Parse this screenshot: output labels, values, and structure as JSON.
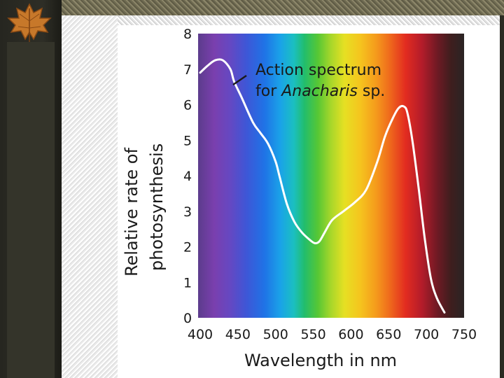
{
  "chart_data": {
    "type": "line",
    "title": "",
    "xlabel": "Wavelength in nm",
    "ylabel_lines": [
      "Relative rate of",
      "photosynthesis"
    ],
    "xlim": [
      400,
      750
    ],
    "ylim": [
      0,
      8
    ],
    "x_ticks": [
      400,
      450,
      500,
      550,
      600,
      650,
      700,
      750
    ],
    "y_ticks": [
      0,
      1,
      2,
      3,
      4,
      5,
      6,
      7,
      8
    ],
    "grid": false,
    "background": "visible light spectrum",
    "series": [
      {
        "name": "Action spectrum for Anacharis sp.",
        "color": "#ffffff",
        "points": [
          [
            400,
            6.9
          ],
          [
            410,
            7.1
          ],
          [
            420,
            7.25
          ],
          [
            430,
            7.25
          ],
          [
            440,
            7.0
          ],
          [
            445,
            6.65
          ],
          [
            455,
            6.2
          ],
          [
            470,
            5.5
          ],
          [
            480,
            5.2
          ],
          [
            490,
            4.9
          ],
          [
            500,
            4.4
          ],
          [
            505,
            4.0
          ],
          [
            515,
            3.2
          ],
          [
            525,
            2.7
          ],
          [
            535,
            2.4
          ],
          [
            545,
            2.2
          ],
          [
            552,
            2.1
          ],
          [
            558,
            2.15
          ],
          [
            565,
            2.4
          ],
          [
            575,
            2.75
          ],
          [
            590,
            3.0
          ],
          [
            605,
            3.25
          ],
          [
            620,
            3.6
          ],
          [
            635,
            4.4
          ],
          [
            645,
            5.1
          ],
          [
            655,
            5.6
          ],
          [
            663,
            5.9
          ],
          [
            670,
            5.95
          ],
          [
            675,
            5.75
          ],
          [
            682,
            4.9
          ],
          [
            690,
            3.6
          ],
          [
            698,
            2.2
          ],
          [
            706,
            1.1
          ],
          [
            714,
            0.55
          ],
          [
            724,
            0.15
          ]
        ]
      }
    ],
    "annotation": {
      "line1": "Action spectrum",
      "line2_prefix": "for ",
      "line2_italic": "Anacharis",
      "line2_suffix": " sp."
    }
  }
}
